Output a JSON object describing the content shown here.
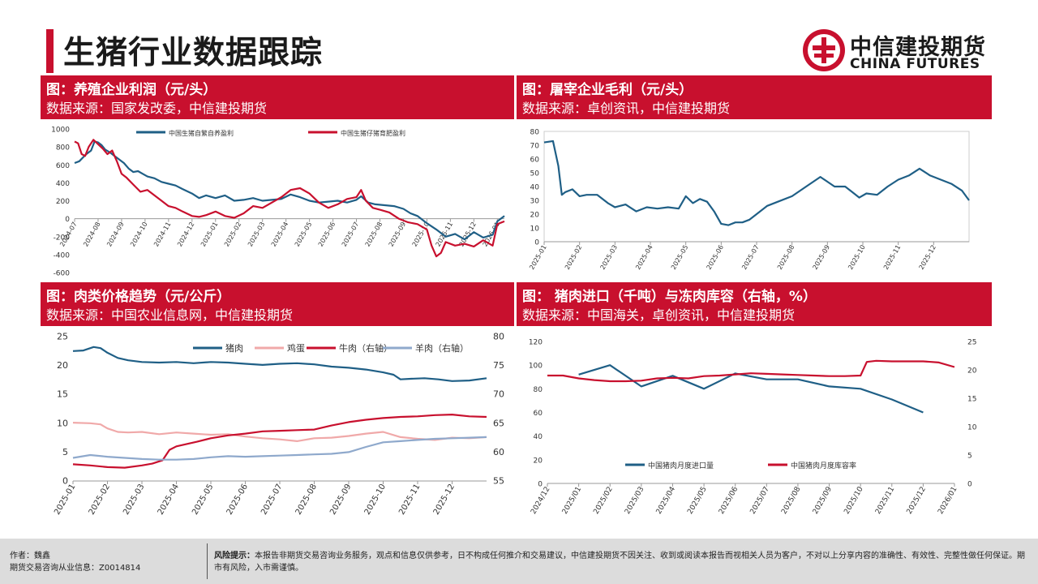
{
  "page": {
    "title": "生猪行业数据跟踪"
  },
  "logo": {
    "cn": "中信建投期货",
    "en": "CHINA FUTURES",
    "brand_color": "#c8102e"
  },
  "panels": [
    {
      "title": "图：养殖企业利润（元/头）",
      "source": "数据来源：国家发改委，中信建投期货"
    },
    {
      "title": "图：屠宰企业毛利（元/头）",
      "source": "数据来源：卓创资讯，中信建投期货"
    },
    {
      "title": "图：肉类价格趋势（元/公斤）",
      "source": "数据来源：中国农业信息网，中信建投期货"
    },
    {
      "title": "图：   猪肉进口（千吨）与冻肉库容（右轴，%）",
      "source": "数据来源：中国海关，卓创资讯，中信建投期货"
    }
  ],
  "footer": {
    "author_label": "作者：",
    "author": "魏鑫",
    "license_label": "期货交易咨询从业信息：",
    "license": "Z0014814",
    "risk_label": "风险提示：",
    "risk_text": "本报告非期货交易咨询业务服务，观点和信息仅供参考，日不构成任何推介和交易建议，中信建投期货不因关注、收到或阅读本报告而视相关人员为客户，不对以上分享内容的准确性、有效性、完整性做任何保证。期市有风险，入市需谨慎。"
  },
  "chart_data": [
    {
      "type": "line",
      "title": "养殖企业利润（元/头）",
      "x_ticks": [
        "2024-07",
        "2024-08",
        "2024-09",
        "2024-10",
        "2024-11",
        "2024-12",
        "2025-01",
        "2025-02",
        "2025-03",
        "2025-04",
        "2025-05",
        "2025-06",
        "2025-07",
        "2025-08",
        "2025-09",
        "2025-10",
        "2025-11",
        "2025-12",
        "2026-01"
      ],
      "ylim": [
        -600,
        1000
      ],
      "y_ticks": [
        1000,
        800,
        600,
        400,
        200,
        0,
        -200,
        -400,
        -600
      ],
      "series": [
        {
          "name": "中国生猪自繁自养盈利",
          "color": "#1f5f86",
          "x": [
            0,
            0.2,
            0.35,
            0.5,
            0.7,
            0.85,
            1.0,
            1.15,
            1.3,
            1.5,
            1.7,
            1.9,
            2.1,
            2.3,
            2.5,
            2.7,
            2.9,
            3.1,
            3.4,
            3.7,
            4.0,
            4.3,
            4.6,
            5.0,
            5.3,
            5.6,
            6.0,
            6.4,
            6.8,
            7.2,
            7.6,
            8.0,
            8.4,
            8.8,
            9.2,
            9.6,
            10.0,
            10.4,
            10.8,
            11.2,
            11.6,
            12.0,
            12.2,
            12.5,
            12.8,
            13.2,
            13.6,
            14.0,
            14.3,
            14.6,
            15.0,
            15.4,
            15.8,
            16.2,
            16.6,
            17.0,
            17.4,
            17.8,
            18.0,
            18.3
          ],
          "values": [
            620,
            640,
            680,
            720,
            760,
            860,
            850,
            820,
            770,
            740,
            700,
            660,
            620,
            560,
            520,
            530,
            500,
            470,
            450,
            410,
            390,
            370,
            330,
            280,
            230,
            260,
            230,
            260,
            200,
            210,
            230,
            200,
            210,
            220,
            270,
            240,
            200,
            180,
            190,
            200,
            180,
            210,
            250,
            180,
            160,
            150,
            140,
            110,
            60,
            30,
            -50,
            -120,
            -200,
            -170,
            -230,
            -150,
            -210,
            -180,
            -30,
            30
          ]
        },
        {
          "name": "中国生猪仔猪育肥盈利",
          "color": "#c8102e",
          "x": [
            0,
            0.15,
            0.3,
            0.45,
            0.6,
            0.8,
            1.0,
            1.2,
            1.4,
            1.6,
            1.8,
            2.0,
            2.2,
            2.5,
            2.8,
            3.1,
            3.4,
            3.7,
            4.0,
            4.3,
            4.6,
            5.0,
            5.3,
            5.6,
            6.0,
            6.4,
            6.8,
            7.2,
            7.6,
            8.0,
            8.4,
            8.8,
            9.2,
            9.6,
            10.0,
            10.4,
            10.8,
            11.2,
            11.6,
            12.0,
            12.2,
            12.4,
            12.7,
            13.0,
            13.4,
            13.8,
            14.2,
            14.6,
            15.0,
            15.2,
            15.4,
            15.6,
            15.8,
            16.2,
            16.6,
            17.0,
            17.4,
            17.8,
            18.0,
            18.3
          ],
          "values": [
            860,
            840,
            720,
            700,
            800,
            880,
            830,
            780,
            720,
            760,
            640,
            500,
            460,
            380,
            300,
            320,
            260,
            200,
            140,
            120,
            80,
            30,
            20,
            40,
            80,
            30,
            10,
            60,
            140,
            120,
            180,
            240,
            320,
            340,
            280,
            180,
            120,
            160,
            220,
            240,
            320,
            200,
            120,
            100,
            70,
            0,
            -40,
            -60,
            -120,
            -300,
            -420,
            -380,
            -260,
            -300,
            -280,
            -310,
            -240,
            -300,
            -60,
            -30
          ]
        }
      ]
    },
    {
      "type": "line",
      "title": "屠宰企业毛利（元/头）",
      "x_ticks": [
        "2025-01",
        "2025-02",
        "2025-03",
        "2025-04",
        "2025-05",
        "2025-06",
        "2025-07",
        "2025-08",
        "2025-09",
        "2025-10",
        "2025-11",
        "2025-12"
      ],
      "ylim": [
        0,
        80
      ],
      "y_ticks": [
        80,
        70,
        60,
        50,
        40,
        30,
        20,
        10,
        0
      ],
      "series": [
        {
          "name": "屠宰企业毛利",
          "color": "#1f5f86",
          "x": [
            0,
            0.25,
            0.4,
            0.5,
            0.6,
            0.8,
            1.0,
            1.2,
            1.5,
            1.8,
            2.0,
            2.3,
            2.6,
            2.9,
            3.2,
            3.5,
            3.8,
            4.0,
            4.2,
            4.4,
            4.6,
            4.8,
            5.0,
            5.2,
            5.4,
            5.6,
            5.8,
            6.0,
            6.3,
            6.6,
            7.0,
            7.4,
            7.8,
            8.2,
            8.5,
            8.7,
            8.9,
            9.1,
            9.4,
            9.7,
            10.0,
            10.3,
            10.6,
            10.9,
            11.2,
            11.5,
            11.8,
            12.0
          ],
          "values": [
            72,
            73,
            55,
            34,
            36,
            38,
            33,
            34,
            34,
            28,
            25,
            27,
            22,
            25,
            24,
            25,
            24,
            33,
            28,
            31,
            29,
            22,
            13,
            12,
            14,
            14,
            16,
            20,
            26,
            29,
            33,
            40,
            47,
            40,
            40,
            36,
            32,
            35,
            34,
            40,
            45,
            48,
            53,
            48,
            45,
            42,
            37,
            30
          ]
        }
      ]
    },
    {
      "type": "line",
      "title": "肉类价格趋势（元/公斤）",
      "x_ticks": [
        "2025-01",
        "2025-02",
        "2025-03",
        "2025-04",
        "2025-05",
        "2025-06",
        "2025-07",
        "2025-08",
        "2025-09",
        "2025-10",
        "2025-11",
        "2025-12"
      ],
      "ylim": [
        0,
        25
      ],
      "y_ticks": [
        25,
        20,
        15,
        10,
        5,
        0
      ],
      "ylim_right": [
        55,
        80
      ],
      "y_ticks_right": [
        80,
        75,
        70,
        65,
        60,
        55
      ],
      "series": [
        {
          "name": "猪肉",
          "axis": "left",
          "color": "#1f5f86",
          "x": [
            0,
            0.3,
            0.6,
            0.8,
            1.0,
            1.3,
            1.6,
            2.0,
            2.5,
            3.0,
            3.5,
            4.0,
            4.5,
            5.0,
            5.5,
            6.0,
            6.5,
            7.0,
            7.5,
            8.0,
            8.5,
            9.0,
            9.3,
            9.5,
            9.8,
            10.2,
            10.6,
            11.0,
            11.5,
            12.0
          ],
          "values": [
            22.5,
            22.6,
            23.2,
            23.0,
            22.2,
            21.3,
            20.9,
            20.6,
            20.5,
            20.6,
            20.4,
            20.6,
            20.5,
            20.3,
            20.1,
            20.3,
            20.4,
            20.2,
            19.8,
            19.6,
            19.3,
            18.8,
            18.4,
            17.6,
            17.7,
            17.8,
            17.6,
            17.3,
            17.4,
            17.8
          ]
        },
        {
          "name": "鸡蛋",
          "axis": "left",
          "color": "#f0a9a9",
          "x": [
            0,
            0.5,
            0.8,
            1.0,
            1.3,
            1.6,
            2.0,
            2.5,
            3.0,
            3.5,
            4.0,
            4.5,
            5.0,
            5.5,
            6.0,
            6.5,
            7.0,
            7.5,
            8.0,
            8.5,
            9.0,
            9.5,
            10.0,
            10.5,
            11.0,
            11.5,
            12.0
          ],
          "values": [
            10.1,
            10.0,
            9.8,
            9.1,
            8.5,
            8.4,
            8.5,
            8.1,
            8.4,
            8.2,
            8.0,
            8.1,
            7.7,
            7.4,
            7.2,
            6.9,
            7.4,
            7.5,
            7.8,
            8.2,
            8.5,
            7.6,
            7.3,
            7.1,
            7.5,
            7.4,
            7.6
          ]
        },
        {
          "name": "牛肉（右轴）",
          "axis": "right",
          "color": "#c8102e",
          "x": [
            0,
            0.5,
            1.0,
            1.5,
            2.0,
            2.3,
            2.6,
            2.8,
            3.0,
            3.3,
            3.6,
            4.0,
            4.5,
            5.0,
            5.5,
            6.0,
            6.5,
            7.0,
            7.5,
            8.0,
            8.5,
            9.0,
            9.5,
            10.0,
            10.5,
            11.0,
            11.5,
            12.0
          ],
          "values": [
            57.9,
            57.7,
            57.4,
            57.3,
            57.7,
            58.0,
            58.6,
            60.4,
            61.0,
            61.4,
            61.8,
            62.4,
            62.9,
            63.2,
            63.6,
            63.7,
            63.8,
            63.9,
            64.6,
            65.2,
            65.6,
            65.9,
            66.1,
            66.2,
            66.4,
            66.5,
            66.2,
            66.1
          ]
        },
        {
          "name": "羊肉（右轴）",
          "axis": "right",
          "color": "#8fa9cc",
          "x": [
            0,
            0.5,
            1.0,
            1.5,
            2.0,
            2.5,
            3.0,
            3.5,
            4.0,
            4.5,
            5.0,
            5.5,
            6.0,
            6.5,
            7.0,
            7.5,
            8.0,
            8.5,
            9.0,
            9.5,
            10.0,
            10.5,
            11.0,
            11.5,
            12.0
          ],
          "values": [
            59.0,
            59.5,
            59.2,
            59.0,
            58.8,
            58.7,
            58.7,
            58.8,
            59.1,
            59.3,
            59.2,
            59.3,
            59.4,
            59.5,
            59.6,
            59.7,
            60.0,
            60.9,
            61.7,
            61.9,
            62.1,
            62.3,
            62.4,
            62.5,
            62.6
          ]
        }
      ]
    },
    {
      "type": "line",
      "title": "猪肉进口（千吨）与冻肉库容（右轴，%）",
      "x_ticks": [
        "2024/12",
        "2025/01",
        "2025/02",
        "2025/03",
        "2025/04",
        "2025/05",
        "2025/06",
        "2025/07",
        "2025/08",
        "2025/09",
        "2025/10",
        "2025/11",
        "2025/12",
        "2026/01"
      ],
      "ylim": [
        0,
        120
      ],
      "y_ticks": [
        120,
        100,
        80,
        60,
        40,
        20,
        0
      ],
      "ylim_right": [
        0,
        25
      ],
      "y_ticks_right": [
        25,
        20,
        15,
        10,
        5,
        0
      ],
      "series": [
        {
          "name": "中国猪肉月度进口量",
          "axis": "left",
          "color": "#1f5f86",
          "x": [
            1,
            2,
            3,
            4,
            5,
            6,
            7,
            8,
            9,
            10,
            11,
            12
          ],
          "values": [
            92,
            100,
            82,
            91,
            80,
            93,
            88,
            88,
            82,
            80,
            71,
            60
          ]
        },
        {
          "name": "中国猪肉月度库容率",
          "axis": "right",
          "color": "#c8102e",
          "x": [
            0,
            0.5,
            1.0,
            1.5,
            2.0,
            2.5,
            3.0,
            3.5,
            4.0,
            4.5,
            5.0,
            5.5,
            6.0,
            6.5,
            7.0,
            7.5,
            8.0,
            8.5,
            9.0,
            9.5,
            10.0,
            10.2,
            10.5,
            11.0,
            11.5,
            12.0,
            12.5,
            13.0
          ],
          "values": [
            19.0,
            19.0,
            18.5,
            18.2,
            18.0,
            18.0,
            18.1,
            18.5,
            18.6,
            18.5,
            18.9,
            19.0,
            19.2,
            19.4,
            19.3,
            19.2,
            19.1,
            19.0,
            18.9,
            18.9,
            19.0,
            21.4,
            21.6,
            21.5,
            21.5,
            21.5,
            21.3,
            20.5
          ]
        }
      ]
    }
  ]
}
